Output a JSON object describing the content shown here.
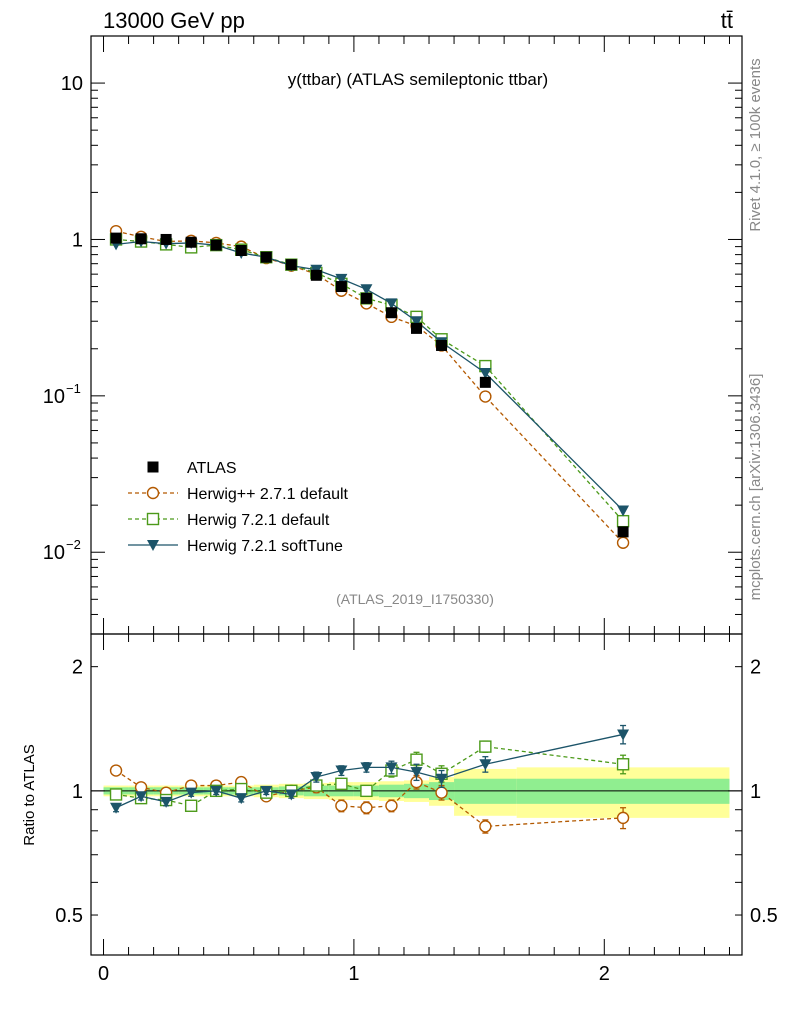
{
  "header": {
    "energy_label": "13000 GeV pp",
    "process_label": "tt̄",
    "plot_title": "y(ttbar) (ATLAS semileptonic ttbar)",
    "analysis_id": "(ATLAS_2019_I1750330)",
    "side_rivet": "Rivet 4.1.0, ≥ 100k events",
    "side_url": "mcplots.cern.ch [arXiv:1306.3436]"
  },
  "colors": {
    "atlas": "#000000",
    "herwigpp": "#b35900",
    "herwig721": "#4c9a1a",
    "softtune": "#1c5469",
    "band_inner": "#90ee90",
    "band_outer": "#ffff99"
  },
  "chart_data": [
    {
      "type": "scatter",
      "yscale": "log",
      "title": "y(ttbar) (ATLAS semileptonic ttbar)",
      "xlabel": "",
      "ylabel": "",
      "xlim": [
        -0.05,
        2.55
      ],
      "ylim": [
        0.003,
        20
      ],
      "y_ticks": [
        {
          "value": 10,
          "label": "10"
        },
        {
          "value": 1,
          "label": "1"
        },
        {
          "value": 0.1,
          "label": "10",
          "exp": "−1"
        },
        {
          "value": 0.01,
          "label": "10",
          "exp": "−2"
        }
      ],
      "x": [
        0.05,
        0.15,
        0.25,
        0.35,
        0.45,
        0.55,
        0.65,
        0.75,
        0.85,
        0.95,
        1.05,
        1.15,
        1.25,
        1.35,
        1.525,
        2.075
      ],
      "series": [
        {
          "name": "ATLAS",
          "marker": "square",
          "values": [
            1.02,
            1.01,
            1.0,
            0.96,
            0.92,
            0.85,
            0.77,
            0.69,
            0.59,
            0.5,
            0.42,
            0.34,
            0.27,
            0.21,
            0.122,
            0.0135
          ]
        },
        {
          "name": "Herwig++ 2.7.1 default",
          "marker": "circle",
          "values": [
            1.13,
            1.04,
            0.97,
            0.98,
            0.95,
            0.9,
            0.76,
            0.68,
            0.6,
            0.47,
            0.39,
            0.32,
            0.28,
            0.21,
            0.099,
            0.0115
          ]
        },
        {
          "name": "Herwig 7.2.1 default",
          "marker": "square-open",
          "values": [
            1.0,
            0.97,
            0.93,
            0.89,
            0.92,
            0.86,
            0.77,
            0.69,
            0.61,
            0.52,
            0.42,
            0.38,
            0.32,
            0.23,
            0.155,
            0.0158
          ]
        },
        {
          "name": "Herwig 7.2.1 softTune",
          "marker": "triangle-down",
          "values": [
            0.93,
            0.97,
            0.94,
            0.95,
            0.92,
            0.82,
            0.77,
            0.68,
            0.64,
            0.56,
            0.48,
            0.39,
            0.3,
            0.22,
            0.14,
            0.0185
          ]
        }
      ]
    },
    {
      "type": "scatter",
      "yscale": "log",
      "title": "",
      "xlabel": "",
      "ylabel": "Ratio to ATLAS",
      "xlim": [
        -0.05,
        2.55
      ],
      "ylim": [
        0.4,
        2.4
      ],
      "y_ticks": [
        {
          "value": 2,
          "label": "2"
        },
        {
          "value": 1,
          "label": "1"
        },
        {
          "value": 0.5,
          "label": "0.5"
        }
      ],
      "x_ticks": [
        {
          "value": 0,
          "label": "0"
        },
        {
          "value": 1,
          "label": "1"
        },
        {
          "value": 2,
          "label": "2"
        }
      ],
      "x": [
        0.05,
        0.15,
        0.25,
        0.35,
        0.45,
        0.55,
        0.65,
        0.75,
        0.85,
        0.95,
        1.05,
        1.15,
        1.25,
        1.35,
        1.525,
        2.075
      ],
      "bins": [
        [
          0.0,
          0.1
        ],
        [
          0.1,
          0.2
        ],
        [
          0.2,
          0.3
        ],
        [
          0.3,
          0.4
        ],
        [
          0.4,
          0.5
        ],
        [
          0.5,
          0.6
        ],
        [
          0.6,
          0.7
        ],
        [
          0.7,
          0.8
        ],
        [
          0.8,
          0.9
        ],
        [
          0.9,
          1.0
        ],
        [
          1.0,
          1.1
        ],
        [
          1.1,
          1.2
        ],
        [
          1.2,
          1.3
        ],
        [
          1.3,
          1.4
        ],
        [
          1.4,
          1.65
        ],
        [
          1.65,
          2.5
        ]
      ],
      "band_inner": [
        0.02,
        0.02,
        0.02,
        0.02,
        0.02,
        0.02,
        0.02,
        0.025,
        0.03,
        0.03,
        0.03,
        0.035,
        0.04,
        0.05,
        0.07,
        0.07
      ],
      "band_outer": [
        0.03,
        0.03,
        0.03,
        0.03,
        0.03,
        0.03,
        0.035,
        0.04,
        0.045,
        0.05,
        0.05,
        0.055,
        0.06,
        0.08,
        0.13,
        0.14
      ],
      "series": [
        {
          "name": "Herwig++ 2.7.1 default",
          "marker": "circle",
          "values": [
            1.12,
            1.02,
            0.99,
            1.03,
            1.03,
            1.05,
            0.97,
            1.0,
            1.02,
            0.92,
            0.91,
            0.92,
            1.05,
            0.99,
            0.82,
            0.86
          ],
          "errors": [
            0.02,
            0.02,
            0.02,
            0.02,
            0.02,
            0.02,
            0.02,
            0.02,
            0.03,
            0.03,
            0.03,
            0.03,
            0.04,
            0.04,
            0.03,
            0.05
          ]
        },
        {
          "name": "Herwig 7.2.1 default",
          "marker": "square-open",
          "values": [
            0.98,
            0.96,
            0.95,
            0.92,
            1.0,
            1.01,
            0.99,
            1.0,
            1.03,
            1.04,
            1.0,
            1.12,
            1.19,
            1.1,
            1.28,
            1.16
          ],
          "errors": [
            0.02,
            0.02,
            0.02,
            0.02,
            0.02,
            0.02,
            0.02,
            0.02,
            0.03,
            0.03,
            0.03,
            0.04,
            0.05,
            0.05,
            0.04,
            0.06
          ]
        },
        {
          "name": "Herwig 7.2.1 softTune",
          "marker": "triangle-down",
          "values": [
            0.91,
            0.97,
            0.94,
            0.99,
            1.0,
            0.96,
            1.0,
            0.98,
            1.08,
            1.12,
            1.14,
            1.14,
            1.11,
            1.07,
            1.16,
            1.37
          ],
          "errors": [
            0.02,
            0.02,
            0.02,
            0.02,
            0.02,
            0.02,
            0.02,
            0.02,
            0.03,
            0.03,
            0.03,
            0.04,
            0.05,
            0.05,
            0.05,
            0.07
          ]
        }
      ]
    }
  ]
}
